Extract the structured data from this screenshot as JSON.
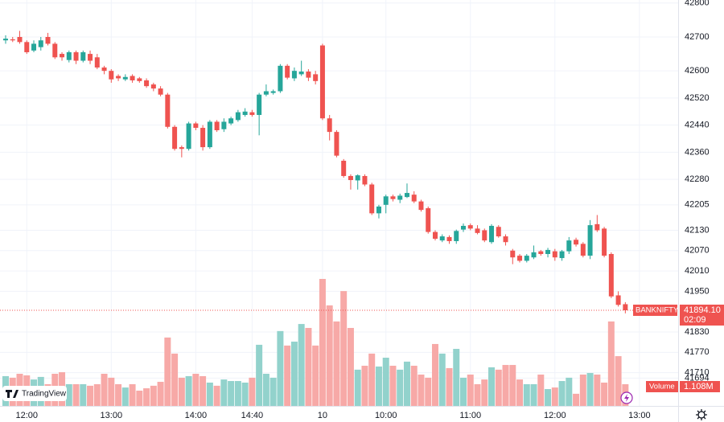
{
  "chart_data": {
    "type": "candlestick",
    "symbol": "BANKNIFTY",
    "last_price_label": "41894.10",
    "countdown": "02:09",
    "volume_title": "Volume",
    "last_volume_label": "1.108M",
    "brand": "TradingView",
    "up_color": "#26a69a",
    "down_color": "#ef5350",
    "volume_up_color": "#92d2cc",
    "volume_down_color": "#f7a9a7",
    "grid": true,
    "ylim": [
      41612,
      42809
    ],
    "yticks": [
      42800,
      42700,
      42600,
      42520,
      42440,
      42360,
      42280,
      42205,
      42130,
      42070,
      42010,
      41950,
      41830,
      41770,
      41710,
      41694
    ],
    "xlim": [
      -0.8,
      95.5
    ],
    "xticks": [
      {
        "value": 3,
        "label": "12:00"
      },
      {
        "value": 15,
        "label": "13:00"
      },
      {
        "value": 27,
        "label": "14:00"
      },
      {
        "value": 35,
        "label": "14:40"
      },
      {
        "value": 45,
        "label": "10"
      },
      {
        "value": 54,
        "label": "10:00"
      },
      {
        "value": 66,
        "label": "11:00"
      },
      {
        "value": 78,
        "label": "12:00"
      },
      {
        "value": 90,
        "label": "13:00"
      }
    ],
    "open": [
      42690,
      42693,
      42700,
      42685,
      42660,
      42670,
      42700,
      42680,
      42650,
      42632,
      42655,
      42630,
      42650,
      42640,
      42610,
      42600,
      42585,
      42575,
      42585,
      42578,
      42572,
      42560,
      42548,
      42530,
      42435,
      42375,
      42370,
      42445,
      42432,
      42375,
      42450,
      42428,
      42445,
      42455,
      42470,
      42478,
      42470,
      42530,
      42535,
      42540,
      42615,
      42578,
      42590,
      42598,
      42590,
      42675,
      42460,
      42420,
      42335,
      42290,
      42277,
      42290,
      42265,
      42180,
      42205,
      42230,
      42220,
      42228,
      42235,
      42215,
      42195,
      42125,
      42100,
      42110,
      42098,
      42132,
      42145,
      42135,
      42130,
      42095,
      42140,
      42112,
      42070,
      42055,
      42040,
      42050,
      42068,
      42060,
      42068,
      42048,
      42068,
      42102,
      42090,
      42055,
      42148,
      42135,
      42060,
      41938,
      41912
    ],
    "high": [
      42705,
      42700,
      42718,
      42690,
      42690,
      42700,
      42712,
      42685,
      42655,
      42660,
      42660,
      42660,
      42660,
      42650,
      42615,
      42605,
      42590,
      42590,
      42590,
      42582,
      42578,
      42565,
      42555,
      42535,
      42440,
      42380,
      42450,
      42450,
      42440,
      42455,
      42455,
      42460,
      42465,
      42485,
      42490,
      42485,
      42535,
      42560,
      42545,
      42620,
      42620,
      42610,
      42630,
      42605,
      42600,
      42680,
      42470,
      42425,
      42340,
      42295,
      42295,
      42295,
      42270,
      42205,
      42235,
      42235,
      42238,
      42268,
      42245,
      42220,
      42200,
      42130,
      42118,
      42115,
      42132,
      42150,
      42150,
      42145,
      42135,
      42148,
      42145,
      42118,
      42075,
      42060,
      42060,
      42085,
      42072,
      42078,
      42075,
      42072,
      42110,
      42108,
      42095,
      42160,
      42175,
      42140,
      42065,
      41950,
      41918
    ],
    "low": [
      42680,
      42685,
      42680,
      42650,
      42655,
      42660,
      42675,
      42635,
      42630,
      42625,
      42620,
      42625,
      42620,
      42605,
      42590,
      42565,
      42570,
      42570,
      42565,
      42565,
      42550,
      42540,
      42525,
      42430,
      42365,
      42345,
      42365,
      42425,
      42365,
      42370,
      42420,
      42420,
      42440,
      42450,
      42465,
      42465,
      42410,
      42525,
      42530,
      42535,
      42575,
      42570,
      42585,
      42570,
      42560,
      42455,
      42395,
      42345,
      42285,
      42250,
      42250,
      42260,
      42175,
      42165,
      42180,
      42215,
      42210,
      42225,
      42210,
      42185,
      42120,
      42100,
      42095,
      42090,
      42090,
      42125,
      42130,
      42118,
      42095,
      42090,
      42108,
      42085,
      42030,
      42035,
      42035,
      42045,
      42055,
      42050,
      42040,
      42040,
      42060,
      42082,
      42050,
      42045,
      42125,
      42050,
      41930,
      41905,
      41885
    ],
    "close": [
      42695,
      42690,
      42685,
      42655,
      42680,
      42690,
      42680,
      42640,
      42640,
      42655,
      42630,
      42655,
      42630,
      42610,
      42600,
      42575,
      42578,
      42582,
      42572,
      42570,
      42555,
      42548,
      42530,
      42435,
      42370,
      42370,
      42445,
      42432,
      42375,
      42450,
      42425,
      42450,
      42460,
      42478,
      42480,
      42470,
      42530,
      42540,
      42540,
      42615,
      42580,
      42600,
      42598,
      42580,
      42570,
      42460,
      42420,
      42350,
      42290,
      42278,
      42292,
      42265,
      42180,
      42200,
      42230,
      42222,
      42232,
      42240,
      42215,
      42190,
      42125,
      42105,
      42112,
      42098,
      42128,
      42143,
      42135,
      42122,
      42100,
      42143,
      42112,
      42095,
      42050,
      42040,
      42055,
      42065,
      42060,
      42072,
      42050,
      42068,
      42100,
      42088,
      42055,
      42145,
      42130,
      42055,
      41935,
      41910,
      41894.1
    ],
    "volume": [
      1.52,
      1.44,
      1.64,
      1.56,
      1.35,
      1.48,
      1.11,
      1.64,
      1.72,
      1.11,
      1.11,
      1.11,
      1.03,
      1.11,
      1.64,
      1.44,
      1.11,
      0.94,
      1.11,
      0.78,
      0.9,
      1.03,
      1.23,
      3.49,
      2.67,
      1.44,
      1.52,
      1.64,
      1.52,
      1.19,
      1.03,
      1.35,
      1.27,
      1.27,
      1.19,
      1.44,
      3.12,
      1.64,
      1.44,
      3.82,
      3.08,
      3.28,
      4.18,
      3.98,
      3.08,
      6.48,
      5.13,
      4.31,
      5.86,
      3.98,
      1.85,
      2.05,
      2.67,
      2.01,
      2.46,
      2.05,
      1.85,
      2.26,
      2.05,
      1.6,
      1.44,
      3.16,
      2.67,
      1.93,
      2.91,
      1.44,
      1.6,
      1.11,
      1.35,
      1.97,
      1.85,
      2.09,
      2.09,
      1.35,
      1.11,
      1.11,
      1.6,
      0.86,
      0.94,
      1.27,
      1.44,
      0.62,
      1.6,
      1.68,
      1.6,
      1.19,
      4.31,
      2.54,
      1.108
    ]
  }
}
